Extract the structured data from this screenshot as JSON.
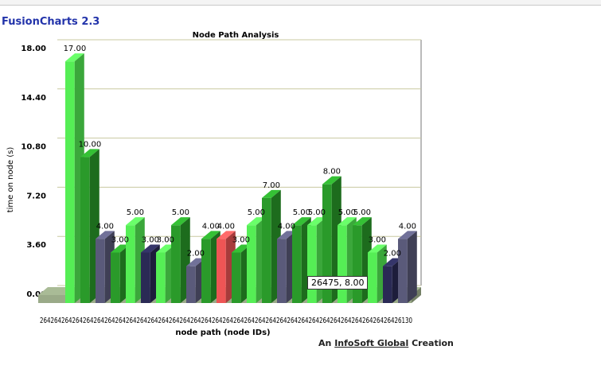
{
  "app_title": "FusionCharts 2.3",
  "credit": {
    "prefix": "An",
    "link": "InfoSoft Global",
    "suffix": "Creation"
  },
  "tooltip_text": "26475, 8.00",
  "colors": {
    "light_green": "#55ee55",
    "dark_green": "#2a9a2a",
    "navy": "#2a2a55",
    "slate": "#5a5a7a",
    "red": "#ee5555",
    "floor": "#9aaa88",
    "grid": "#c8c8a0"
  },
  "chart_data": {
    "type": "bar",
    "title": "Node Path Analysis",
    "xlabel": "node path (node IDs)",
    "ylabel": "time on node (s)",
    "ylim": [
      0,
      18
    ],
    "yticks": [
      "0.00",
      "3.60",
      "7.20",
      "10.80",
      "14.40",
      "18.00"
    ],
    "category_label_strip": "26426426426426426426426426426426426426426426426426426426426426426426426426426426426426426426426426426130",
    "bars": [
      {
        "value": 17,
        "label": "17.00",
        "color": "light_green"
      },
      {
        "value": 10,
        "label": "10.00",
        "color": "dark_green"
      },
      {
        "value": 4,
        "label": "4.00",
        "color": "slate"
      },
      {
        "value": 3,
        "label": "3.00",
        "color": "dark_green"
      },
      {
        "value": 5,
        "label": "5.00",
        "color": "light_green"
      },
      {
        "value": 3,
        "label": "3.00",
        "color": "navy"
      },
      {
        "value": 3,
        "label": "3.00",
        "color": "light_green"
      },
      {
        "value": 5,
        "label": "5.00",
        "color": "dark_green"
      },
      {
        "value": 2,
        "label": "2.00",
        "color": "slate"
      },
      {
        "value": 4,
        "label": "4.00",
        "color": "dark_green"
      },
      {
        "value": 4,
        "label": "4.00",
        "color": "red"
      },
      {
        "value": 3,
        "label": "3.00",
        "color": "dark_green"
      },
      {
        "value": 5,
        "label": "5.00",
        "color": "light_green"
      },
      {
        "value": 7,
        "label": "7.00",
        "color": "dark_green"
      },
      {
        "value": 4,
        "label": "4.00",
        "color": "slate"
      },
      {
        "value": 5,
        "label": "5.00",
        "color": "dark_green"
      },
      {
        "value": 5,
        "label": "5.00",
        "color": "light_green"
      },
      {
        "value": 8,
        "label": "8.00",
        "color": "dark_green"
      },
      {
        "value": 5,
        "label": "5.00",
        "color": "light_green"
      },
      {
        "value": 5,
        "label": "5.00",
        "color": "dark_green"
      },
      {
        "value": 3,
        "label": "3.00",
        "color": "light_green"
      },
      {
        "value": 2,
        "label": "2.00",
        "color": "navy"
      },
      {
        "value": 4,
        "label": "4.00",
        "color": "slate"
      }
    ]
  }
}
